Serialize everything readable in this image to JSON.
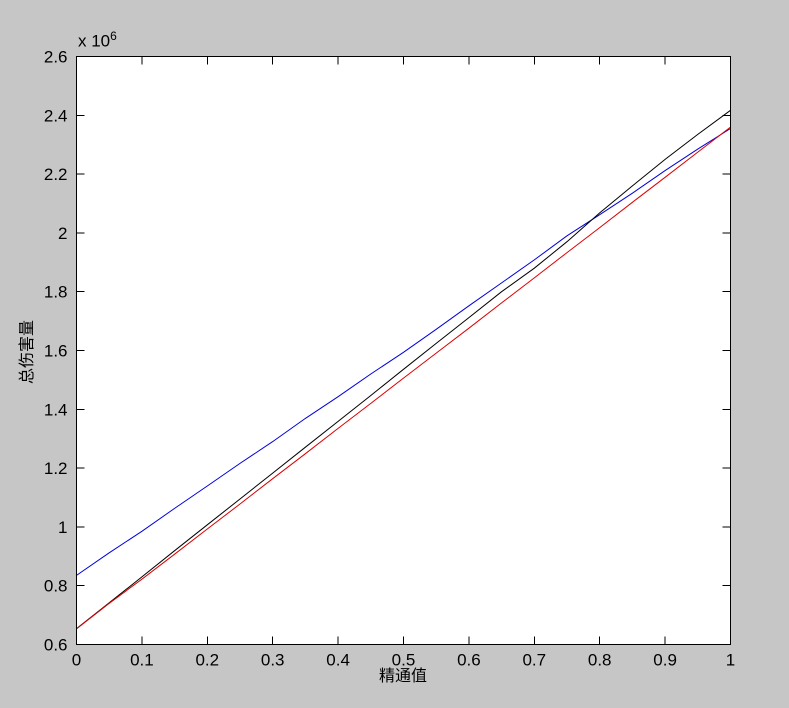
{
  "figure": {
    "background": "#c6c6c6",
    "plot_background": "#ffffff",
    "axis_color": "#000000"
  },
  "labels": {
    "xlabel": "精通值",
    "ylabel": "总伤害量",
    "y_exponent_base": "x 10",
    "y_exponent_power": "6"
  },
  "chart_data": {
    "type": "line",
    "title": "",
    "xlabel": "精通值",
    "ylabel": "总伤害量",
    "y_scale_label": "x 10^6",
    "xlim": [
      0,
      1
    ],
    "ylim": [
      600000,
      2600000
    ],
    "grid": false,
    "legend": "none",
    "box": true,
    "tick_direction": "in",
    "x_ticks": [
      0,
      0.1,
      0.2,
      0.3,
      0.4,
      0.5,
      0.6,
      0.7,
      0.8,
      0.9,
      1
    ],
    "x_tick_labels": [
      "0",
      "0.1",
      "0.2",
      "0.3",
      "0.4",
      "0.5",
      "0.6",
      "0.7",
      "0.8",
      "0.9",
      "1"
    ],
    "y_ticks": [
      600000,
      800000,
      1000000,
      1200000,
      1400000,
      1600000,
      1800000,
      2000000,
      2200000,
      2400000,
      2600000
    ],
    "y_tick_labels": [
      "0.6",
      "0.8",
      "1",
      "1.2",
      "1.4",
      "1.6",
      "1.8",
      "2",
      "2.2",
      "2.4",
      "2.6"
    ],
    "x": [
      0,
      0.05,
      0.1,
      0.15,
      0.2,
      0.25,
      0.3,
      0.35,
      0.4,
      0.45,
      0.5,
      0.55,
      0.6,
      0.65,
      0.7,
      0.75,
      0.8,
      0.85,
      0.9,
      0.95,
      1
    ],
    "series": [
      {
        "name": "blue-line",
        "color": "#0000dd",
        "values": [
          835000,
          912000,
          985000,
          1063000,
          1139000,
          1216000,
          1290000,
          1369000,
          1443000,
          1520000,
          1594000,
          1672000,
          1752000,
          1830000,
          1908000,
          1990000,
          2062000,
          2135000,
          2212000,
          2285000,
          2355000
        ]
      },
      {
        "name": "black-line",
        "color": "#000000",
        "values": [
          654000,
          742000,
          830000,
          919000,
          1007000,
          1095000,
          1183000,
          1271000,
          1359000,
          1447000,
          1536000,
          1624000,
          1712000,
          1800000,
          1880000,
          1970000,
          2068000,
          2160000,
          2250000,
          2335000,
          2417000
        ]
      },
      {
        "name": "red-line",
        "color": "#dd0000",
        "values": [
          653000,
          740000,
          822000,
          907000,
          993000,
          1078000,
          1164000,
          1249000,
          1335000,
          1420000,
          1506000,
          1591000,
          1676000,
          1762000,
          1847000,
          1933000,
          2018000,
          2104000,
          2189000,
          2275000,
          2360000
        ]
      }
    ]
  }
}
